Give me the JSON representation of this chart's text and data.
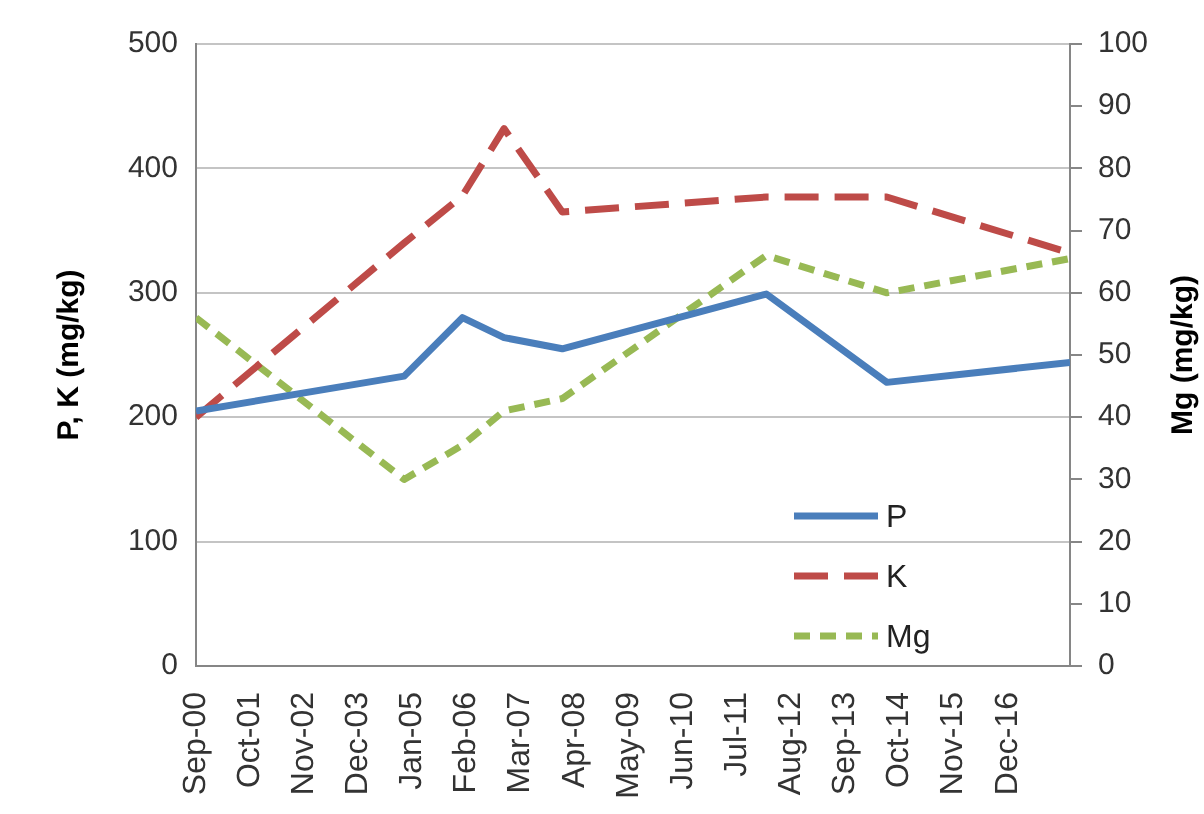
{
  "chart_data": {
    "type": "line",
    "x": [
      "2000-09",
      "2004-11",
      "2006-01",
      "2006-11",
      "2008-01",
      "2012-02",
      "2014-07",
      "2018-03"
    ],
    "series": [
      {
        "name": "P",
        "color": "#4a7ebb",
        "line_style": "solid",
        "values": [
          205,
          233,
          280,
          264,
          255,
          299,
          228,
          244
        ]
      },
      {
        "name": "K",
        "color": "#be4b48",
        "line_style": "dashed",
        "values": [
          200,
          340,
          378,
          432,
          365,
          377,
          377,
          332
        ]
      },
      {
        "name": "Mg",
        "color": "#98b954",
        "line_style": "dashed",
        "axis": "y2",
        "values": [
          56,
          30,
          35.5,
          41,
          43,
          66,
          60,
          65.5
        ]
      }
    ],
    "ylabel": "P, K (mg/kg)",
    "y2label": "Mg (mg/kg)",
    "xlim": [
      "2000-09",
      "2018-03"
    ],
    "xticks": [
      {
        "value": "2000-09",
        "label": "Sep-00"
      },
      {
        "value": "2001-10",
        "label": "Oct-01"
      },
      {
        "value": "2002-11",
        "label": "Nov-02"
      },
      {
        "value": "2003-12",
        "label": "Dec-03"
      },
      {
        "value": "2005-01",
        "label": "Jan-05"
      },
      {
        "value": "2006-02",
        "label": "Feb-06"
      },
      {
        "value": "2007-03",
        "label": "Mar-07"
      },
      {
        "value": "2008-04",
        "label": "Apr-08"
      },
      {
        "value": "2009-05",
        "label": "May-09"
      },
      {
        "value": "2010-06",
        "label": "Jun-10"
      },
      {
        "value": "2011-07",
        "label": "Jul-11"
      },
      {
        "value": "2012-08",
        "label": "Aug-12"
      },
      {
        "value": "2013-09",
        "label": "Sep-13"
      },
      {
        "value": "2014-10",
        "label": "Oct-14"
      },
      {
        "value": "2015-11",
        "label": "Nov-15"
      },
      {
        "value": "2016-12",
        "label": "Dec-16"
      }
    ],
    "ylim": [
      0,
      500
    ],
    "yticks": [
      0,
      100,
      200,
      300,
      400,
      500
    ],
    "y2lim": [
      0,
      100
    ],
    "y2ticks": [
      0,
      10,
      20,
      30,
      40,
      50,
      60,
      70,
      80,
      90,
      100
    ],
    "grid": "y",
    "legend": "bottom right",
    "marker": "none"
  }
}
